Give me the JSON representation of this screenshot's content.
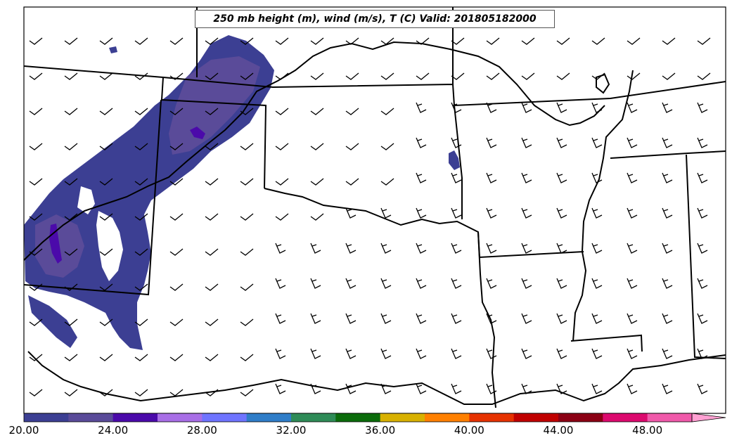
{
  "title": "250 mb height (m), wind (m/s), T (C) Valid: 201805182000",
  "colorbar": {
    "colors": [
      "#3c3f93",
      "#5a4b99",
      "#4b0aaa",
      "#a86ee6",
      "#6f74ff",
      "#2f7dc8",
      "#2e8b57",
      "#0b6b0b",
      "#d8b100",
      "#ff8000",
      "#e63200",
      "#c00000",
      "#8b0014",
      "#dc0a6e",
      "#f05aaa",
      "#ffa0d2"
    ],
    "ticks": [
      "20.00",
      "24.00",
      "28.00",
      "32.00",
      "36.00",
      "40.00",
      "44.00",
      "48.00"
    ],
    "extend": "max"
  },
  "contour_fill": {
    "level": "20-22 C",
    "colors": [
      "#3c3f93",
      "#5a4b99",
      "#4b0aaa"
    ]
  },
  "wind_barbs": {
    "north_region": "light westerly / northwesterly",
    "southeast_region": "south-southwesterly"
  }
}
